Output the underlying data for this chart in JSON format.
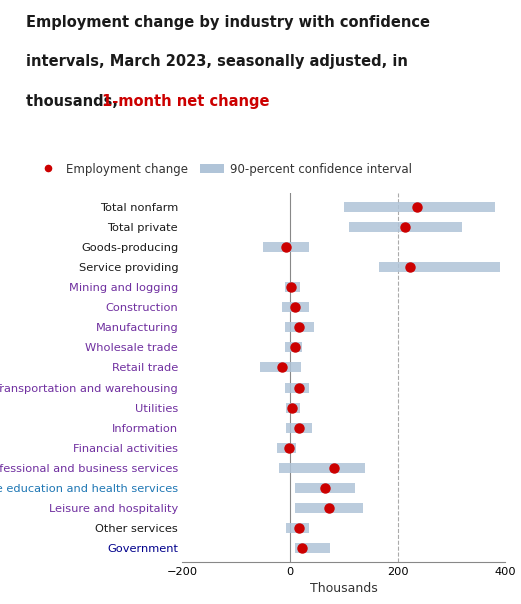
{
  "title_line1": "Employment change by industry with confidence",
  "title_line2": "intervals, March 2023, seasonally adjusted, in",
  "title_line3_black": "thousands, ",
  "title_line3_red": "1-month net change",
  "categories": [
    "Total nonfarm",
    "Total private",
    "Goods-producing",
    "Service providing",
    "Mining and logging",
    "Construction",
    "Manufacturing",
    "Wholesale trade",
    "Retail trade",
    "Transportation and warehousing",
    "Utilities",
    "Information",
    "Financial activities",
    "Professional and business services",
    "Private education and health services",
    "Leisure and hospitality",
    "Other services",
    "Government"
  ],
  "values": [
    236,
    214,
    -8,
    222,
    2,
    10,
    17,
    10,
    -15,
    17,
    4,
    17,
    -2,
    82,
    65,
    72,
    17,
    22
  ],
  "ci_low": [
    100,
    110,
    -50,
    165,
    -10,
    -15,
    -10,
    -10,
    -55,
    -10,
    -8,
    -8,
    -25,
    -20,
    10,
    10,
    -8,
    10
  ],
  "ci_high": [
    380,
    320,
    35,
    390,
    18,
    35,
    45,
    22,
    20,
    35,
    18,
    40,
    12,
    140,
    120,
    135,
    35,
    75
  ],
  "bar_color": "#b0c4d8",
  "dot_color": "#cc0000",
  "dashed_line_color": "#aaaaaa",
  "xlabel": "Thousands",
  "xlim": [
    -200,
    400
  ],
  "xticks": [
    -200,
    0,
    200,
    400
  ],
  "label_colors": {
    "Total nonfarm": "#1a1a1a",
    "Total private": "#1a1a1a",
    "Goods-producing": "#1a1a1a",
    "Service providing": "#1a1a1a",
    "Mining and logging": "#7030a0",
    "Construction": "#7030a0",
    "Manufacturing": "#7030a0",
    "Wholesale trade": "#7030a0",
    "Retail trade": "#7030a0",
    "Transportation and warehousing": "#7030a0",
    "Utilities": "#7030a0",
    "Information": "#7030a0",
    "Financial activities": "#7030a0",
    "Professional and business services": "#7030a0",
    "Private education and health services": "#1f77b4",
    "Leisure and hospitality": "#7030a0",
    "Other services": "#1a1a1a",
    "Government": "#00008b"
  },
  "legend_dot_label": "Employment change",
  "legend_bar_label": "90-percent confidence interval",
  "background_color": "#ffffff",
  "title_fontsize": 10.5,
  "label_fontsize": 8.2,
  "legend_fontsize": 8.5
}
